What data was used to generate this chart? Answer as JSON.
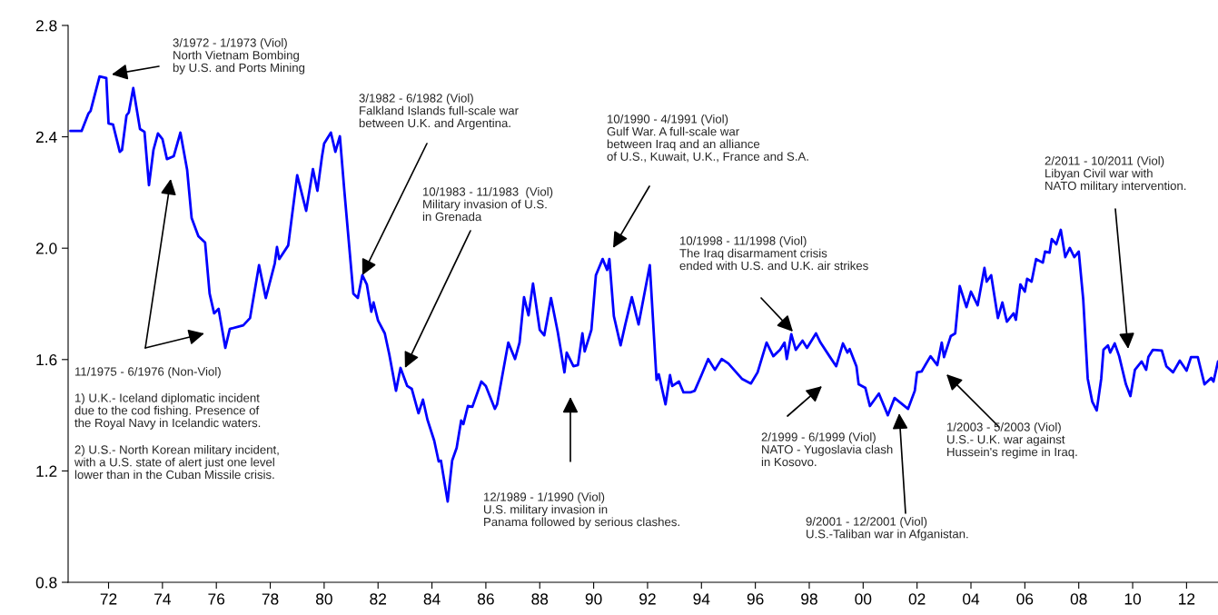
{
  "chart_data": {
    "type": "line",
    "x": [
      "1971-02",
      "1971-07",
      "1971-10",
      "1971-11",
      "1972-03",
      "1972-06",
      "1972-07",
      "1972-09",
      "1972-12",
      "1973-01",
      "1973-03",
      "1973-04",
      "1973-06",
      "1973-09",
      "1973-11",
      "1974-01",
      "1974-03",
      "1974-05",
      "1974-07",
      "1974-09",
      "1974-12",
      "1975-03",
      "1975-06",
      "1975-08",
      "1975-11",
      "1976-02",
      "1976-04",
      "1976-06",
      "1976-08",
      "1976-11",
      "1977-01",
      "1977-07",
      "1977-10",
      "1978-02",
      "1978-05",
      "1978-09",
      "1978-10",
      "1978-11",
      "1979-03",
      "1979-07",
      "1979-11",
      "1980-02",
      "1980-04",
      "1980-06",
      "1980-07",
      "1980-10",
      "1980-12",
      "1981-02",
      "1981-04",
      "1981-08",
      "1981-10",
      "1981-12",
      "1982-02",
      "1982-04",
      "1982-05",
      "1982-07",
      "1982-10",
      "1982-12",
      "1983-03",
      "1983-05",
      "1983-08",
      "1983-10",
      "1984-01",
      "1984-03",
      "1984-05",
      "1984-08",
      "1984-10",
      "1984-11",
      "1985-02",
      "1985-04",
      "1985-06",
      "1985-08",
      "1985-09",
      "1985-11",
      "1986-01",
      "1986-05",
      "1986-07",
      "1986-11",
      "1986-12",
      "1987-05",
      "1987-08",
      "1987-10",
      "1987-12",
      "1988-02",
      "1988-04",
      "1988-07",
      "1988-09",
      "1988-12",
      "1989-03",
      "1989-06",
      "1989-07",
      "1989-10",
      "1989-12",
      "1990-02",
      "1990-03",
      "1990-06",
      "1990-08",
      "1990-11",
      "1991-01",
      "1991-02",
      "1991-04",
      "1991-07",
      "1991-09",
      "1991-12",
      "1992-03",
      "1992-08",
      "1992-11",
      "1992-12",
      "1993-03",
      "1993-05",
      "1993-06",
      "1993-09",
      "1993-11",
      "1994-02",
      "1994-04",
      "1994-07",
      "1994-10",
      "1995-01",
      "1995-04",
      "1995-07",
      "1996-01",
      "1996-05",
      "1996-08",
      "1996-12",
      "1997-03",
      "1997-06",
      "1997-08",
      "1997-09",
      "1997-11",
      "1998-01",
      "1998-04",
      "1998-06",
      "1998-10",
      "1998-12",
      "1999-04",
      "1999-07",
      "1999-10",
      "1999-12",
      "2000-01",
      "2000-04",
      "2000-05",
      "2000-08",
      "2000-10",
      "2001-02",
      "2001-06",
      "2001-09",
      "2002-03",
      "2002-06",
      "2002-07",
      "2002-09",
      "2003-01",
      "2003-04",
      "2003-06",
      "2003-07",
      "2003-10",
      "2003-12",
      "2004-02",
      "2004-05",
      "2004-07",
      "2004-10",
      "2005-01",
      "2005-02",
      "2005-04",
      "2005-07",
      "2005-09",
      "2005-11",
      "2006-02",
      "2006-03",
      "2006-05",
      "2006-07",
      "2006-08",
      "2006-10",
      "2006-12",
      "2007-03",
      "2007-04",
      "2007-06",
      "2007-07",
      "2007-09",
      "2007-11",
      "2008-01",
      "2008-03",
      "2008-05",
      "2008-07",
      "2008-09",
      "2008-11",
      "2009-01",
      "2009-03",
      "2009-05",
      "2009-06",
      "2009-08",
      "2009-09",
      "2009-11",
      "2010-01",
      "2010-04",
      "2010-06",
      "2010-08",
      "2010-11",
      "2011-01",
      "2011-02",
      "2011-04",
      "2011-08",
      "2011-10",
      "2012-01",
      "2012-04",
      "2012-07",
      "2012-09",
      "2012-12",
      "2013-03",
      "2013-06",
      "2013-07",
      "2013-09"
    ],
    "series": [
      {
        "color": "#0000ff",
        "values": [
          2.421,
          2.421,
          2.483,
          2.493,
          2.617,
          2.611,
          2.448,
          2.444,
          2.346,
          2.353,
          2.477,
          2.487,
          2.575,
          2.428,
          2.418,
          2.226,
          2.353,
          2.412,
          2.392,
          2.32,
          2.33,
          2.415,
          2.281,
          2.108,
          2.043,
          2.02,
          1.837,
          1.766,
          1.782,
          1.642,
          1.71,
          1.723,
          1.749,
          1.939,
          1.821,
          1.945,
          2.004,
          1.961,
          2.01,
          2.262,
          2.134,
          2.284,
          2.206,
          2.327,
          2.376,
          2.415,
          2.346,
          2.402,
          2.206,
          1.837,
          1.821,
          1.903,
          1.87,
          1.772,
          1.805,
          1.74,
          1.694,
          1.619,
          1.488,
          1.57,
          1.505,
          1.495,
          1.407,
          1.456,
          1.384,
          1.309,
          1.234,
          1.237,
          1.09,
          1.237,
          1.283,
          1.381,
          1.368,
          1.433,
          1.43,
          1.521,
          1.505,
          1.423,
          1.439,
          1.661,
          1.602,
          1.661,
          1.824,
          1.759,
          1.873,
          1.707,
          1.687,
          1.821,
          1.7,
          1.554,
          1.625,
          1.576,
          1.58,
          1.694,
          1.629,
          1.707,
          1.903,
          1.961,
          1.922,
          1.961,
          1.756,
          1.651,
          1.723,
          1.824,
          1.726,
          1.939,
          1.527,
          1.547,
          1.439,
          1.544,
          1.505,
          1.521,
          1.482,
          1.482,
          1.488,
          1.544,
          1.602,
          1.563,
          1.602,
          1.586,
          1.531,
          1.514,
          1.554,
          1.661,
          1.612,
          1.635,
          1.661,
          1.602,
          1.691,
          1.635,
          1.668,
          1.642,
          1.694,
          1.661,
          1.612,
          1.576,
          1.658,
          1.625,
          1.638,
          1.576,
          1.511,
          1.498,
          1.433,
          1.478,
          1.4,
          1.462,
          1.423,
          1.488,
          1.554,
          1.557,
          1.612,
          1.58,
          1.661,
          1.609,
          1.684,
          1.694,
          1.864,
          1.788,
          1.844,
          1.795,
          1.929,
          1.88,
          1.903,
          1.749,
          1.805,
          1.736,
          1.766,
          1.743,
          1.87,
          1.844,
          1.89,
          1.88,
          1.961,
          1.948,
          1.988,
          1.984,
          2.033,
          2.014,
          2.066,
          1.968,
          2.001,
          1.968,
          1.988,
          1.815,
          1.531,
          1.449,
          1.417,
          1.531,
          1.635,
          1.651,
          1.625,
          1.658,
          1.612,
          1.511,
          1.469,
          1.563,
          1.593,
          1.563,
          1.609,
          1.635,
          1.632,
          1.576,
          1.554,
          1.596,
          1.56,
          1.609,
          1.609,
          1.511,
          1.534,
          1.521,
          1.593
        ]
      }
    ],
    "xlim": [
      "1971-01",
      "2013-09"
    ],
    "xticks": [
      {
        "value": "1972-07",
        "label": "72"
      },
      {
        "value": "1974-07",
        "label": "74"
      },
      {
        "value": "1976-07",
        "label": "76"
      },
      {
        "value": "1978-07",
        "label": "78"
      },
      {
        "value": "1980-07",
        "label": "80"
      },
      {
        "value": "1982-07",
        "label": "82"
      },
      {
        "value": "1984-07",
        "label": "84"
      },
      {
        "value": "1986-07",
        "label": "86"
      },
      {
        "value": "1988-07",
        "label": "88"
      },
      {
        "value": "1990-07",
        "label": "90"
      },
      {
        "value": "1992-07",
        "label": "92"
      },
      {
        "value": "1994-07",
        "label": "94"
      },
      {
        "value": "1996-07",
        "label": "96"
      },
      {
        "value": "1998-07",
        "label": "98"
      },
      {
        "value": "2000-07",
        "label": "00"
      },
      {
        "value": "2002-07",
        "label": "02"
      },
      {
        "value": "2004-07",
        "label": "04"
      },
      {
        "value": "2006-07",
        "label": "06"
      },
      {
        "value": "2008-07",
        "label": "08"
      },
      {
        "value": "2010-07",
        "label": "10"
      },
      {
        "value": "2012-07",
        "label": "12"
      }
    ],
    "ylim": [
      0.8,
      2.8
    ],
    "yticks": [
      {
        "value": 0.8,
        "label": "0.8"
      },
      {
        "value": 1.2,
        "label": "1.2"
      },
      {
        "value": 1.6,
        "label": "1.6"
      },
      {
        "value": 2.0,
        "label": "2.0"
      },
      {
        "value": 2.4,
        "label": "2.4"
      },
      {
        "value": 2.8,
        "label": "2.8"
      }
    ],
    "annotations": [
      "3/1972 - 1/1973 (Viol)\nNorth Vietnam Bombing\nby U.S. and Ports Mining",
      {
        "text": "3/1982 - 6/1982 (Viol)\nFalkland Islands full-scale war\nbetween U.K. and Argentina.",
        "x": "1981-12",
        "y": 1.903
      },
      {
        "text": "10/1983 - 11/1983  (Viol)\nMilitary invasion of U.S.\nin Grenada",
        "x": "1983-07",
        "y": 1.57
      },
      "12/1989 - 1/1990 (Viol)\nU.S. military invasion in\nPanama followed by serious clashes.",
      "10/1990 - 4/1991 (Viol)\nGulf War. A full-scale war\nbetween Iraq and an alliance\nof U.S., Kuwait, U.K., France and S.A.",
      "10/1998 - 11/1998 (Viol)\nThe Iraq disarmament crisis\nended with U.S. and U.K. air strikes",
      "2/1999 - 6/1999 (Viol)\nNATO - Yugoslavia clash\nin Kosovo.",
      "9/2001 - 12/2001 (Viol)\nU.S.-Taliban war in Afganistan.",
      "1/2003 - 5/2003 (Viol)\nU.S.- U.K. war against\nHussein's regime in Iraq.",
      "2/2011 - 10/2011 (Viol)\nLibyan Civil war with\nNATO military intervention.",
      "11/1975 - 6/1976 (Non-Viol)",
      "1) U.K.- Iceland diplomatic incident\ndue to the cod fishing. Presence of\nthe Royal Navy in Icelandic waters.",
      "2) U.S.- North Korean military incident,\nwith a U.S. state of alert just one level\nlower than in the Cuban Missile crisis."
    ]
  }
}
